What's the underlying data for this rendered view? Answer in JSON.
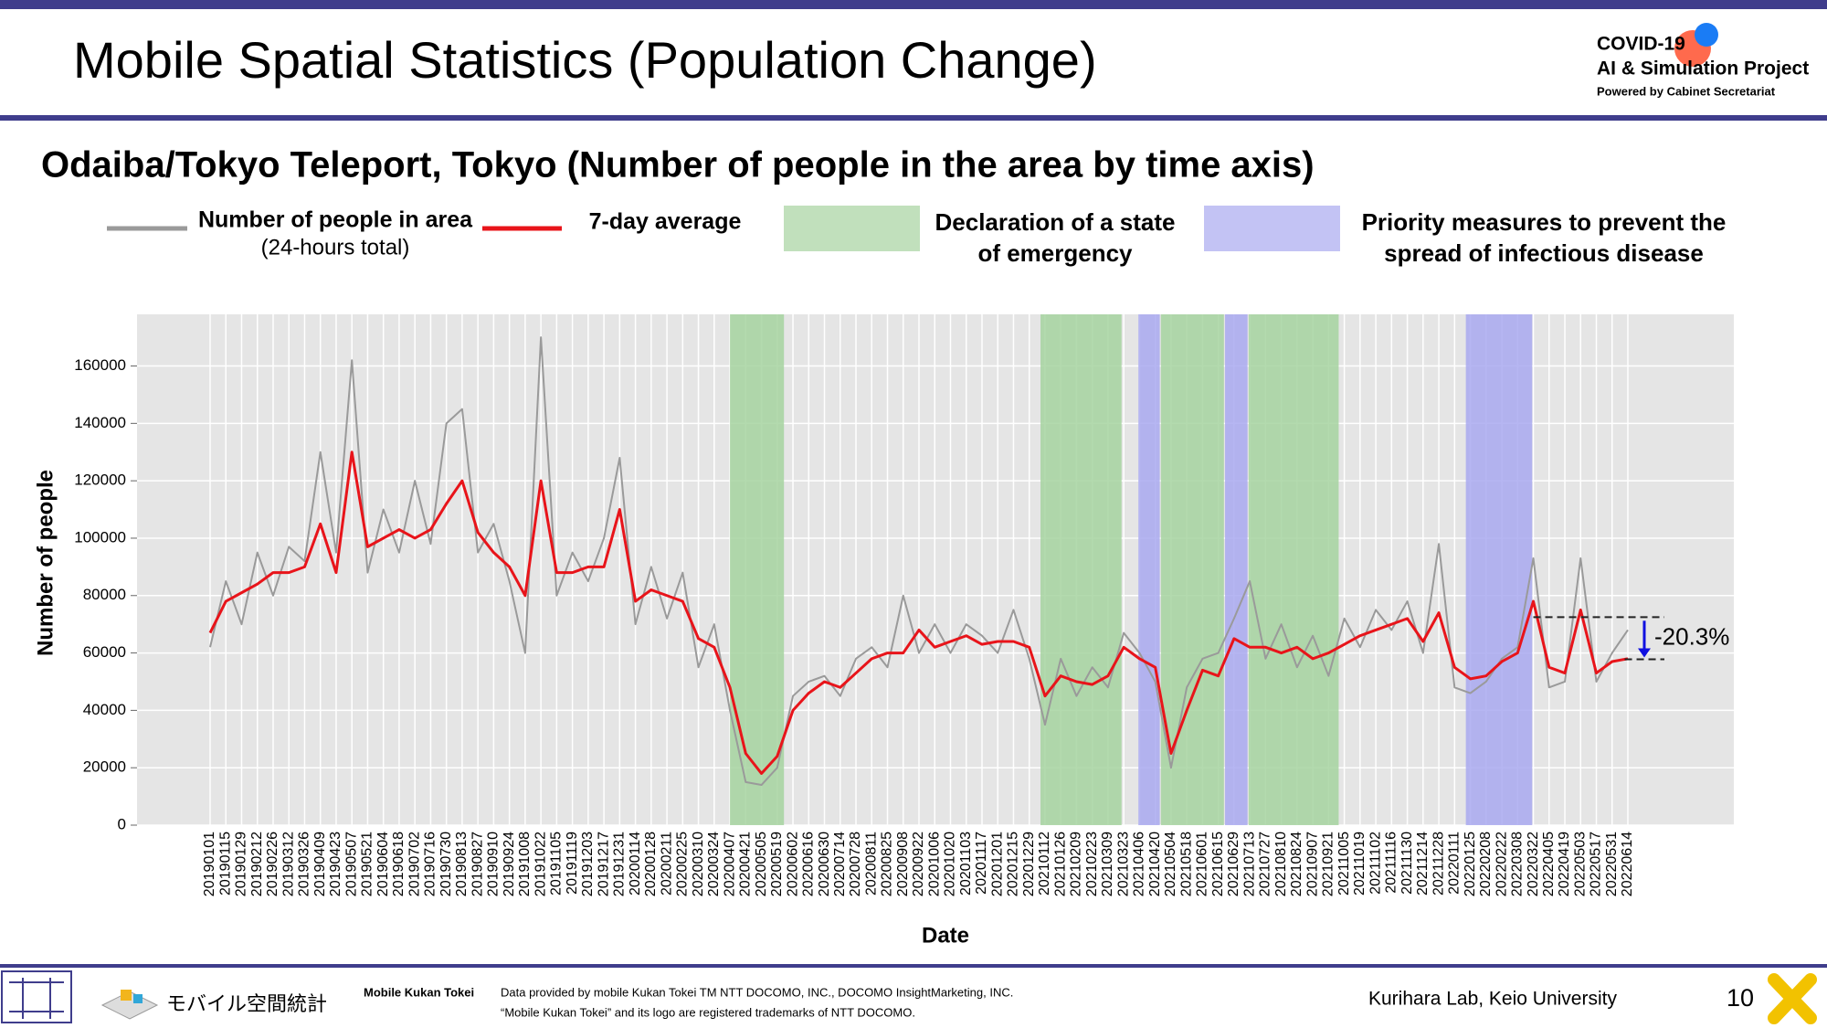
{
  "header": {
    "title": "Mobile Spatial Statistics (Population Change)",
    "logo": {
      "line1": "COVID-19",
      "line2": "AI & Simulation Project",
      "line3": "Powered by Cabinet Secretariat"
    }
  },
  "chart_data": {
    "type": "line",
    "title": "Odaiba/Tokyo Teleport, Tokyo (Number of people in the area by time axis)",
    "x_label": "Date",
    "y_label": "Number of people",
    "categories": [
      "20190101",
      "20190115",
      "20190129",
      "20190212",
      "20190226",
      "20190312",
      "20190326",
      "20190409",
      "20190423",
      "20190507",
      "20190521",
      "20190604",
      "20190618",
      "20190702",
      "20190716",
      "20190730",
      "20190813",
      "20190827",
      "20190910",
      "20190924",
      "20191008",
      "20191022",
      "20191105",
      "20191119",
      "20191203",
      "20191217",
      "20191231",
      "20200114",
      "20200128",
      "20200211",
      "20200225",
      "20200310",
      "20200324",
      "20200407",
      "20200421",
      "20200505",
      "20200519",
      "20200602",
      "20200616",
      "20200630",
      "20200714",
      "20200728",
      "20200811",
      "20200825",
      "20200908",
      "20200922",
      "20201006",
      "20201020",
      "20201103",
      "20201117",
      "20201201",
      "20201215",
      "20201229",
      "20210112",
      "20210126",
      "20210209",
      "20210223",
      "20210309",
      "20210323",
      "20210406",
      "20210420",
      "20210504",
      "20210518",
      "20210601",
      "20210615",
      "20210629",
      "20210713",
      "20210727",
      "20210810",
      "20210824",
      "20210907",
      "20210921",
      "20211005",
      "20211019",
      "20211102",
      "20211116",
      "20211130",
      "20211214",
      "20211228",
      "20220111",
      "20220125",
      "20220208",
      "20220222",
      "20220308",
      "20220322",
      "20220405",
      "20220419",
      "20220503",
      "20220517",
      "20220531",
      "20220614"
    ],
    "series": [
      {
        "name": "Number of people in area",
        "name_line2": "(24-hours total)",
        "color": "#9a9a9a",
        "values": [
          62000,
          85000,
          70000,
          95000,
          80000,
          97000,
          92000,
          130000,
          95000,
          162000,
          88000,
          110000,
          95000,
          120000,
          98000,
          140000,
          145000,
          95000,
          105000,
          85000,
          60000,
          170000,
          80000,
          95000,
          85000,
          100000,
          128000,
          70000,
          90000,
          72000,
          88000,
          55000,
          70000,
          40000,
          15000,
          14000,
          20000,
          45000,
          50000,
          52000,
          45000,
          58000,
          62000,
          55000,
          80000,
          60000,
          70000,
          60000,
          70000,
          66000,
          60000,
          75000,
          58000,
          35000,
          58000,
          45000,
          55000,
          48000,
          67000,
          60000,
          50000,
          20000,
          48000,
          58000,
          60000,
          72000,
          85000,
          58000,
          70000,
          55000,
          66000,
          52000,
          72000,
          62000,
          75000,
          68000,
          78000,
          60000,
          98000,
          48000,
          46000,
          50000,
          58000,
          62000,
          93000,
          48000,
          50000,
          93000,
          50000,
          60000,
          68000
        ]
      },
      {
        "name": "7-day average",
        "color": "#e8141a",
        "values": [
          67000,
          78000,
          81000,
          84000,
          88000,
          88000,
          90000,
          105000,
          88000,
          130000,
          97000,
          100000,
          103000,
          100000,
          103000,
          112000,
          120000,
          102000,
          95000,
          90000,
          80000,
          120000,
          88000,
          88000,
          90000,
          90000,
          110000,
          78000,
          82000,
          80000,
          78000,
          65000,
          62000,
          48000,
          25000,
          18000,
          24000,
          40000,
          46000,
          50000,
          48000,
          53000,
          58000,
          60000,
          60000,
          68000,
          62000,
          64000,
          66000,
          63000,
          64000,
          64000,
          62000,
          45000,
          52000,
          50000,
          49000,
          52000,
          62000,
          58000,
          55000,
          25000,
          40000,
          54000,
          52000,
          65000,
          62000,
          62000,
          60000,
          62000,
          58000,
          60000,
          63000,
          66000,
          68000,
          70000,
          72000,
          64000,
          74000,
          55000,
          51000,
          52000,
          57000,
          60000,
          78000,
          55000,
          53000,
          75000,
          53000,
          57000,
          58000
        ]
      }
    ],
    "bands": [
      {
        "name": "Declaration of a state",
        "name_line2": "of emergency",
        "color": "#a6d3a0",
        "periods": [
          [
            "20200407",
            "20200525"
          ],
          [
            "20210108",
            "20210321"
          ],
          [
            "20210425",
            "20210620"
          ],
          [
            "20210712",
            "20210930"
          ]
        ]
      },
      {
        "name": "Priority measures to prevent the",
        "name_line2": "spread of infectious disease",
        "color": "#a9a9f0",
        "periods": [
          [
            "20210405",
            "20210424"
          ],
          [
            "20210621",
            "20210711"
          ],
          [
            "20220121",
            "20220321"
          ]
        ]
      }
    ],
    "ylim": [
      0,
      178000
    ],
    "yticks": [
      0,
      20000,
      40000,
      60000,
      80000,
      100000,
      120000,
      140000,
      160000
    ],
    "grid": true,
    "annotation": {
      "text": "-20.3%",
      "from": 72500,
      "to": 57800,
      "start": "20220322",
      "color": "#1010e0"
    }
  },
  "footer": {
    "brand": "モバイル空間統計",
    "source_title": "Mobile Kukan Tokei",
    "source_line1": "Data provided by mobile Kukan Tokei TM NTT DOCOMO, INC., DOCOMO InsightMarketing, INC.",
    "source_line2": "“Mobile Kukan Tokei” and its logo are registered trademarks of NTT DOCOMO.",
    "credit": "Kurihara Lab, Keio University",
    "page": "10"
  }
}
